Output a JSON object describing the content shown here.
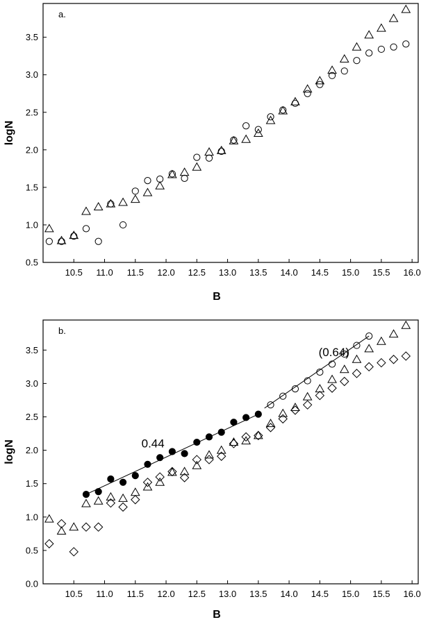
{
  "chart_data": [
    {
      "type": "scatter",
      "panel_label": "a.",
      "xlabel": "B",
      "ylabel": "logN",
      "xlim": [
        10.0,
        16.1
      ],
      "ylim": [
        0.5,
        3.95
      ],
      "xticks": [
        10.5,
        11.0,
        11.5,
        12.0,
        12.5,
        13.0,
        13.5,
        14.0,
        14.5,
        15.0,
        15.5,
        16.0
      ],
      "yticks": [
        0.5,
        1.0,
        1.5,
        2.0,
        2.5,
        3.0,
        3.5
      ],
      "grid": false,
      "annotations": [],
      "series": [
        {
          "marker": "triangle",
          "points": [
            [
              10.1,
              0.95
            ],
            [
              10.3,
              0.79
            ],
            [
              10.5,
              0.86
            ],
            [
              10.7,
              1.18
            ],
            [
              10.9,
              1.24
            ],
            [
              11.1,
              1.28
            ],
            [
              11.3,
              1.3
            ],
            [
              11.5,
              1.34
            ],
            [
              11.7,
              1.43
            ],
            [
              11.9,
              1.52
            ],
            [
              12.1,
              1.67
            ],
            [
              12.3,
              1.7
            ],
            [
              12.5,
              1.77
            ],
            [
              12.7,
              1.97
            ],
            [
              12.9,
              1.99
            ],
            [
              13.1,
              2.12
            ],
            [
              13.3,
              2.14
            ],
            [
              13.5,
              2.22
            ],
            [
              13.7,
              2.39
            ],
            [
              13.9,
              2.52
            ],
            [
              14.1,
              2.64
            ],
            [
              14.3,
              2.81
            ],
            [
              14.5,
              2.92
            ],
            [
              14.7,
              3.06
            ],
            [
              14.9,
              3.21
            ],
            [
              15.1,
              3.37
            ],
            [
              15.3,
              3.53
            ],
            [
              15.5,
              3.62
            ],
            [
              15.7,
              3.75
            ],
            [
              15.9,
              3.87
            ]
          ]
        },
        {
          "marker": "circle",
          "points": [
            [
              10.1,
              0.78
            ],
            [
              10.3,
              0.78
            ],
            [
              10.5,
              0.85
            ],
            [
              10.7,
              0.95
            ],
            [
              10.9,
              0.78
            ],
            [
              11.1,
              1.28
            ],
            [
              11.3,
              1.0
            ],
            [
              11.5,
              1.45
            ],
            [
              11.7,
              1.59
            ],
            [
              11.9,
              1.61
            ],
            [
              12.1,
              1.68
            ],
            [
              12.3,
              1.62
            ],
            [
              12.5,
              1.9
            ],
            [
              12.7,
              1.89
            ],
            [
              12.9,
              1.98
            ],
            [
              13.1,
              2.13
            ],
            [
              13.3,
              2.32
            ],
            [
              13.5,
              2.27
            ],
            [
              13.7,
              2.44
            ],
            [
              13.9,
              2.53
            ],
            [
              14.1,
              2.62
            ],
            [
              14.3,
              2.75
            ],
            [
              14.5,
              2.87
            ],
            [
              14.7,
              2.99
            ],
            [
              14.9,
              3.05
            ],
            [
              15.1,
              3.19
            ],
            [
              15.3,
              3.29
            ],
            [
              15.5,
              3.34
            ],
            [
              15.7,
              3.37
            ],
            [
              15.9,
              3.41
            ]
          ]
        }
      ]
    },
    {
      "type": "scatter",
      "panel_label": "b.",
      "xlabel": "B",
      "ylabel": "logN",
      "xlim": [
        10.0,
        16.1
      ],
      "ylim": [
        0.0,
        3.95
      ],
      "xticks": [
        10.5,
        11.0,
        11.5,
        12.0,
        12.5,
        13.0,
        13.5,
        14.0,
        14.5,
        15.0,
        15.5,
        16.0
      ],
      "yticks": [
        0.0,
        0.5,
        1.0,
        1.5,
        2.0,
        2.5,
        3.0,
        3.5
      ],
      "grid": false,
      "annotations": [
        {
          "text": "0.44",
          "x": 11.6,
          "y": 2.04
        },
        {
          "text": "(0.64)",
          "x": 14.48,
          "y": 3.41
        }
      ],
      "series": [
        {
          "marker": "triangle",
          "points": [
            [
              10.1,
              0.97
            ],
            [
              10.3,
              0.79
            ],
            [
              10.5,
              0.85
            ],
            [
              10.7,
              1.2
            ],
            [
              10.9,
              1.24
            ],
            [
              11.1,
              1.3
            ],
            [
              11.3,
              1.28
            ],
            [
              11.5,
              1.37
            ],
            [
              11.7,
              1.45
            ],
            [
              11.9,
              1.52
            ],
            [
              12.1,
              1.67
            ],
            [
              12.3,
              1.68
            ],
            [
              12.5,
              1.77
            ],
            [
              12.7,
              1.93
            ],
            [
              12.9,
              2.0
            ],
            [
              13.1,
              2.12
            ],
            [
              13.3,
              2.14
            ],
            [
              13.5,
              2.22
            ],
            [
              13.7,
              2.4
            ],
            [
              13.9,
              2.55
            ],
            [
              14.1,
              2.64
            ],
            [
              14.3,
              2.8
            ],
            [
              14.5,
              2.92
            ],
            [
              14.7,
              3.06
            ],
            [
              14.9,
              3.21
            ],
            [
              15.1,
              3.36
            ],
            [
              15.3,
              3.52
            ],
            [
              15.5,
              3.63
            ],
            [
              15.7,
              3.74
            ],
            [
              15.9,
              3.87
            ]
          ]
        },
        {
          "marker": "diamond",
          "points": [
            [
              10.1,
              0.6
            ],
            [
              10.3,
              0.9
            ],
            [
              10.5,
              0.48
            ],
            [
              10.7,
              0.85
            ],
            [
              10.9,
              0.85
            ],
            [
              11.1,
              1.21
            ],
            [
              11.3,
              1.15
            ],
            [
              11.5,
              1.26
            ],
            [
              11.7,
              1.52
            ],
            [
              11.9,
              1.6
            ],
            [
              12.1,
              1.68
            ],
            [
              12.3,
              1.59
            ],
            [
              12.5,
              1.86
            ],
            [
              12.7,
              1.86
            ],
            [
              12.9,
              1.91
            ],
            [
              13.1,
              2.1
            ],
            [
              13.3,
              2.2
            ],
            [
              13.5,
              2.22
            ],
            [
              13.7,
              2.34
            ],
            [
              13.9,
              2.47
            ],
            [
              14.1,
              2.6
            ],
            [
              14.3,
              2.68
            ],
            [
              14.5,
              2.82
            ],
            [
              14.7,
              2.93
            ],
            [
              14.9,
              3.03
            ],
            [
              15.1,
              3.15
            ],
            [
              15.3,
              3.25
            ],
            [
              15.5,
              3.31
            ],
            [
              15.7,
              3.36
            ],
            [
              15.9,
              3.41
            ]
          ]
        },
        {
          "marker": "filled-circle",
          "points": [
            [
              10.7,
              1.34
            ],
            [
              10.9,
              1.38
            ],
            [
              11.1,
              1.57
            ],
            [
              11.3,
              1.52
            ],
            [
              11.5,
              1.62
            ],
            [
              11.7,
              1.79
            ],
            [
              11.9,
              1.89
            ],
            [
              12.1,
              1.98
            ],
            [
              12.3,
              1.95
            ],
            [
              12.5,
              2.12
            ],
            [
              12.7,
              2.2
            ],
            [
              12.9,
              2.27
            ],
            [
              13.1,
              2.42
            ],
            [
              13.3,
              2.49
            ],
            [
              13.5,
              2.54
            ]
          ]
        },
        {
          "marker": "open-circle",
          "points": [
            [
              13.7,
              2.68
            ],
            [
              13.9,
              2.81
            ],
            [
              14.1,
              2.92
            ],
            [
              14.3,
              3.04
            ],
            [
              14.5,
              3.17
            ],
            [
              14.7,
              3.29
            ],
            [
              14.9,
              3.44
            ],
            [
              15.1,
              3.57
            ],
            [
              15.3,
              3.71
            ]
          ]
        }
      ],
      "fit_lines": [
        {
          "x": [
            10.7,
            13.5
          ],
          "y": [
            1.34,
            2.54
          ]
        },
        {
          "x": [
            13.6,
            15.3
          ],
          "y": [
            2.63,
            3.71
          ]
        }
      ]
    }
  ]
}
